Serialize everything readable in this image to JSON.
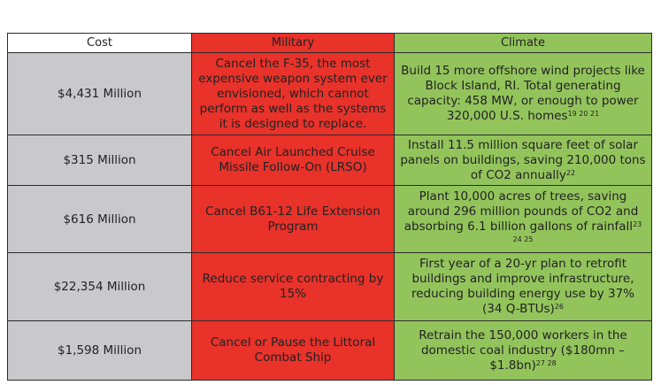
{
  "headers": {
    "cost": "Cost",
    "military": "Military",
    "climate": "Climate"
  },
  "rows": [
    {
      "cost": "$4,431 Million",
      "military": "Cancel the F-35, the most expensive weapon system ever envisioned, which cannot perform as well as the systems it is designed to replace.",
      "climate": "Build 15 more offshore wind projects like Block Island, RI. Total generating capacity: 458 MW, or enough to power 320,000 U.S. homes",
      "climate_refs": "19 20 21"
    },
    {
      "cost": "$315 Million",
      "military": "Cancel Air Launched Cruise Missile Follow-On (LRSO)",
      "climate": "Install 11.5 million square feet of solar panels on buildings, saving 210,000 tons of CO2 annually",
      "climate_refs": "22"
    },
    {
      "cost": "$616 Million",
      "military": "Cancel B61-12 Life Extension Program",
      "climate": "Plant 10,000 acres of trees, saving around 296 million pounds of CO2 and absorbing 6.1 billion gallons of rainfall",
      "climate_refs": "23 24 25"
    },
    {
      "cost": "$22,354 Million",
      "military": "Reduce service contracting by 15%",
      "climate": "First year of a 20-yr plan to retrofit buildings and improve infrastructure, reducing building energy use by 37% (34 Q-BTUs)",
      "climate_refs": "26"
    },
    {
      "cost": "$1,598 Million",
      "military": "Cancel or Pause the Littoral Combat Ship",
      "climate": "Retrain the 150,000 workers in the domestic coal industry ($180mn – $1.8bn)",
      "climate_refs": "27 28"
    }
  ],
  "colors": {
    "military": "#e8322a",
    "climate": "#93c45c",
    "cost": "#c9c9cc",
    "border": "#2a2a2a"
  }
}
